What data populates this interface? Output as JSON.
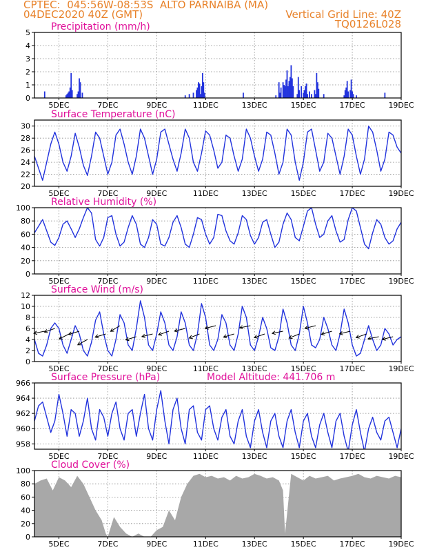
{
  "header": {
    "line1": "CPTEC:  045:56W-08:53S  ALTO PARNAIBA (MA)",
    "line2": "04DEC2020 40Z (GMT)",
    "right1": "Vertical Grid Line: 40Z",
    "right2": "TQ0126L028"
  },
  "colors": {
    "header": "#e8822a",
    "title": "#e0109a",
    "series": "#2233dd",
    "cloud": "#a8a8a8",
    "grid": "#888888"
  },
  "x_axis": {
    "range_hours": [
      0,
      360
    ],
    "ticks": [
      {
        "hour": 24,
        "label": "5DEC"
      },
      {
        "hour": 72,
        "label": "7DEC"
      },
      {
        "hour": 120,
        "label": "9DEC"
      },
      {
        "hour": 168,
        "label": "11DEC"
      },
      {
        "hour": 216,
        "label": "13DEC"
      },
      {
        "hour": 264,
        "label": "15DEC"
      },
      {
        "hour": 312,
        "label": "17DEC"
      },
      {
        "hour": 360,
        "label": "19DEC"
      }
    ]
  },
  "chart_data": [
    {
      "type": "bar",
      "title": "Precipitation (mm/h)",
      "ylim": [
        0,
        5
      ],
      "yticks": [
        0,
        1,
        2,
        3,
        4,
        5
      ],
      "grid": true,
      "x_hours": [
        10,
        31,
        32,
        33,
        34,
        35,
        36,
        37,
        42,
        43,
        44,
        45,
        47,
        148,
        152,
        156,
        159,
        160,
        161,
        162,
        163,
        164,
        165,
        166,
        167,
        205,
        237,
        240,
        241,
        242,
        244,
        245,
        246,
        247,
        248,
        249,
        250,
        251,
        252,
        253,
        254,
        258,
        259,
        260,
        262,
        264,
        265,
        266,
        267,
        268,
        270,
        272,
        275,
        276,
        277,
        278,
        279,
        284,
        304,
        305,
        306,
        307,
        308,
        310,
        311,
        312,
        313,
        316,
        344
      ],
      "values": [
        0.5,
        0.2,
        0.3,
        0.4,
        0.5,
        0.8,
        1.9,
        0.6,
        0.3,
        0.5,
        1.5,
        1.2,
        0.4,
        0.2,
        0.3,
        0.4,
        0.6,
        0.8,
        1.2,
        1.1,
        0.3,
        0.9,
        1.9,
        1.2,
        0.4,
        0.4,
        0.2,
        1.2,
        0.4,
        0.8,
        1.2,
        1.0,
        0.9,
        1.4,
        2.1,
        0.9,
        1.3,
        1.6,
        2.5,
        1.5,
        0.9,
        0.3,
        1.6,
        0.6,
        0.9,
        0.4,
        0.6,
        0.9,
        1.1,
        0.3,
        0.5,
        0.3,
        0.6,
        0.3,
        1.9,
        1.2,
        0.7,
        0.3,
        0.2,
        0.6,
        0.8,
        1.3,
        0.5,
        0.6,
        1.4,
        0.5,
        0.3,
        0.2,
        0.4
      ]
    },
    {
      "type": "line",
      "title": "Surface Temperature (nC)",
      "ylim": [
        20,
        31
      ],
      "yticks": [
        20,
        22,
        24,
        26,
        28,
        30
      ],
      "grid": true,
      "x": [
        0,
        8,
        16,
        20,
        24,
        28,
        32,
        36,
        40,
        44,
        48,
        52,
        56,
        60,
        64,
        68,
        72,
        76,
        80,
        84,
        88,
        92,
        96,
        100,
        104,
        108,
        112,
        116,
        120,
        124,
        128,
        132,
        136,
        140,
        144,
        148,
        152,
        156,
        160,
        164,
        168,
        172,
        176,
        180,
        184,
        188,
        192,
        196,
        200,
        204,
        208,
        212,
        216,
        220,
        224,
        228,
        232,
        236,
        240,
        244,
        248,
        252,
        256,
        260,
        264,
        268,
        272,
        276,
        280,
        284,
        288,
        292,
        296,
        300,
        304,
        308,
        312,
        316,
        320,
        324,
        328,
        332,
        336,
        340,
        344,
        348,
        352,
        356,
        360
      ],
      "y": [
        25.0,
        21.0,
        27.0,
        29.0,
        27.0,
        24.0,
        22.5,
        25.0,
        28.8,
        26.5,
        23.5,
        21.8,
        25.0,
        29.0,
        28.0,
        25.0,
        22.0,
        24.0,
        28.5,
        29.5,
        27.0,
        24.0,
        22.0,
        25.0,
        29.5,
        28.0,
        25.0,
        22.0,
        24.5,
        29.0,
        29.5,
        27.0,
        24.5,
        22.5,
        25.5,
        29.5,
        28.0,
        24.0,
        22.5,
        25.5,
        29.2,
        28.5,
        26.0,
        23.0,
        24.0,
        28.5,
        28.0,
        25.0,
        22.5,
        24.5,
        29.5,
        28.0,
        25.0,
        22.5,
        24.5,
        29.0,
        28.5,
        25.5,
        22.0,
        24.0,
        29.5,
        28.5,
        24.0,
        21.0,
        24.0,
        29.0,
        29.5,
        26.0,
        22.5,
        24.0,
        28.8,
        28.0,
        25.0,
        22.0,
        25.0,
        29.5,
        28.5,
        25.0,
        22.0,
        24.5,
        30.0,
        29.0,
        26.0,
        22.5,
        24.5,
        29.0,
        28.5,
        26.5,
        25.5
      ]
    },
    {
      "type": "line",
      "title": "Relative Humidity (%)",
      "ylim": [
        0,
        100
      ],
      "yticks": [
        0,
        20,
        40,
        60,
        80,
        100
      ],
      "grid": true,
      "x": [
        0,
        8,
        16,
        20,
        24,
        28,
        32,
        36,
        40,
        44,
        48,
        52,
        56,
        60,
        64,
        68,
        72,
        76,
        80,
        84,
        88,
        92,
        96,
        100,
        104,
        108,
        112,
        116,
        120,
        124,
        128,
        132,
        136,
        140,
        144,
        148,
        152,
        156,
        160,
        164,
        168,
        172,
        176,
        180,
        184,
        188,
        192,
        196,
        200,
        204,
        208,
        212,
        216,
        220,
        224,
        228,
        232,
        236,
        240,
        244,
        248,
        252,
        256,
        260,
        264,
        268,
        272,
        276,
        280,
        284,
        288,
        292,
        296,
        300,
        304,
        308,
        312,
        316,
        320,
        324,
        328,
        332,
        336,
        340,
        344,
        348,
        352,
        356,
        360
      ],
      "y": [
        62,
        82,
        48,
        43,
        55,
        75,
        80,
        68,
        55,
        68,
        85,
        100,
        92,
        52,
        42,
        55,
        85,
        88,
        60,
        42,
        48,
        70,
        88,
        75,
        45,
        40,
        55,
        82,
        75,
        45,
        42,
        55,
        78,
        88,
        70,
        45,
        40,
        60,
        85,
        82,
        60,
        45,
        55,
        90,
        88,
        65,
        50,
        45,
        62,
        88,
        82,
        58,
        45,
        55,
        78,
        82,
        60,
        40,
        48,
        75,
        92,
        82,
        55,
        50,
        72,
        95,
        100,
        75,
        55,
        60,
        80,
        88,
        65,
        48,
        52,
        82,
        100,
        95,
        70,
        45,
        38,
        62,
        82,
        75,
        55,
        45,
        50,
        68,
        78
      ]
    },
    {
      "type": "line",
      "title": "Surface Wind (m/s)",
      "ylim": [
        0,
        12
      ],
      "yticks": [
        0,
        2,
        4,
        6,
        8,
        10,
        12
      ],
      "grid": true,
      "x": [
        0,
        4,
        8,
        12,
        16,
        20,
        24,
        28,
        32,
        36,
        40,
        44,
        48,
        52,
        56,
        60,
        64,
        68,
        72,
        76,
        80,
        84,
        88,
        92,
        96,
        100,
        104,
        108,
        112,
        116,
        120,
        124,
        128,
        132,
        136,
        140,
        144,
        148,
        152,
        156,
        160,
        164,
        168,
        172,
        176,
        180,
        184,
        188,
        192,
        196,
        200,
        204,
        208,
        212,
        216,
        220,
        224,
        228,
        232,
        236,
        240,
        244,
        248,
        252,
        256,
        260,
        264,
        268,
        272,
        276,
        280,
        284,
        288,
        292,
        296,
        300,
        304,
        308,
        312,
        316,
        320,
        324,
        328,
        332,
        336,
        340,
        344,
        348,
        352,
        356,
        360
      ],
      "y": [
        4.0,
        1.5,
        1.0,
        3.0,
        6.0,
        7.0,
        6.0,
        3.0,
        1.5,
        4.0,
        6.5,
        5.0,
        2.0,
        1.0,
        3.5,
        7.5,
        9.0,
        5.0,
        2.0,
        1.0,
        4.0,
        8.5,
        7.0,
        3.0,
        2.0,
        6.0,
        11.0,
        8.0,
        3.0,
        2.0,
        5.0,
        9.0,
        7.0,
        3.0,
        2.0,
        4.5,
        9.0,
        7.0,
        3.0,
        2.0,
        5.0,
        10.5,
        8.0,
        3.0,
        2.0,
        4.0,
        8.5,
        7.0,
        3.0,
        2.0,
        5.0,
        10.0,
        8.0,
        3.0,
        2.0,
        4.5,
        8.0,
        6.0,
        2.5,
        2.0,
        4.5,
        9.5,
        7.0,
        3.0,
        2.0,
        5.0,
        10.0,
        7.0,
        3.0,
        2.5,
        4.0,
        8.0,
        6.0,
        3.0,
        2.0,
        5.0,
        9.5,
        7.0,
        3.0,
        1.0,
        1.5,
        4.0,
        6.5,
        4.0,
        2.0,
        3.0,
        6.0,
        5.0,
        3.0,
        4.0,
        4.5
      ],
      "arrows": {
        "x": [
          10,
          20,
          34,
          44,
          52,
          70,
          84,
          100,
          116,
          132,
          148,
          162,
          178,
          196,
          212,
          226,
          244,
          260,
          276,
          292,
          310,
          326,
          338,
          352
        ],
        "speed": [
          5.5,
          6.0,
          5.0,
          5.5,
          4.0,
          5.0,
          6.5,
          4.5,
          5.0,
          5.5,
          6.0,
          5.0,
          6.5,
          5.0,
          6.5,
          5.0,
          5.5,
          5.0,
          6.5,
          5.5,
          5.5,
          5.0,
          4.5,
          4.5
        ],
        "dx": [
          -1,
          -1,
          -1,
          -1,
          -1,
          -1,
          -1,
          -1,
          -1,
          -1,
          -1,
          -1,
          -1,
          -1,
          -1,
          -1,
          -1,
          -1,
          -1,
          -1,
          -1,
          -1,
          -1,
          -1
        ],
        "dy": [
          0.2,
          0.35,
          0.5,
          0.3,
          0.55,
          0.3,
          0.6,
          0.3,
          0.25,
          0.35,
          0.25,
          0.4,
          0.25,
          0.3,
          0.2,
          0.35,
          0.2,
          0.4,
          0.25,
          0.3,
          0.25,
          0.35,
          0.2,
          0.25
        ]
      }
    },
    {
      "type": "line",
      "title": "Surface Pressure (hPa)",
      "annotation": "Model Altitude: 441.706  m",
      "ylim": [
        957.3,
        966
      ],
      "yticks": [
        958,
        960,
        962,
        964,
        966
      ],
      "grid": true,
      "x": [
        0,
        4,
        8,
        12,
        16,
        20,
        24,
        28,
        32,
        36,
        40,
        44,
        48,
        52,
        56,
        60,
        64,
        68,
        72,
        76,
        80,
        84,
        88,
        92,
        96,
        100,
        104,
        108,
        112,
        116,
        120,
        124,
        128,
        132,
        136,
        140,
        144,
        148,
        152,
        156,
        160,
        164,
        168,
        172,
        176,
        180,
        184,
        188,
        192,
        196,
        200,
        204,
        208,
        212,
        216,
        220,
        224,
        228,
        232,
        236,
        240,
        244,
        248,
        252,
        256,
        260,
        264,
        268,
        272,
        276,
        280,
        284,
        288,
        292,
        296,
        300,
        304,
        308,
        312,
        316,
        320,
        324,
        328,
        332,
        336,
        340,
        344,
        348,
        352,
        356,
        360
      ],
      "y": [
        961.0,
        963.0,
        963.5,
        961.5,
        959.5,
        961.0,
        964.5,
        962.0,
        959.0,
        962.5,
        962.0,
        959.0,
        961.0,
        964.0,
        960.0,
        958.5,
        962.5,
        961.5,
        959.0,
        962.0,
        963.5,
        960.0,
        958.5,
        962.0,
        962.5,
        959.0,
        962.0,
        964.5,
        960.0,
        958.5,
        962.5,
        965.0,
        961.0,
        958.0,
        962.5,
        964.0,
        960.0,
        958.0,
        962.5,
        963.0,
        959.5,
        958.5,
        962.5,
        963.0,
        960.0,
        958.5,
        961.5,
        962.5,
        959.0,
        958.0,
        961.0,
        962.5,
        959.0,
        957.5,
        961.0,
        962.5,
        959.5,
        957.5,
        961.0,
        962.0,
        959.0,
        957.5,
        961.0,
        962.5,
        959.5,
        957.5,
        961.0,
        962.0,
        959.0,
        957.5,
        960.5,
        962.0,
        959.5,
        957.5,
        961.0,
        962.0,
        959.0,
        957.0,
        960.5,
        962.5,
        959.5,
        957.0,
        960.0,
        961.5,
        959.5,
        958.5,
        961.0,
        961.5,
        959.5,
        957.5,
        960.0
      ]
    },
    {
      "type": "area",
      "title": "Cloud Cover (%)",
      "ylim": [
        0,
        100
      ],
      "yticks": [
        0,
        20,
        40,
        60,
        80,
        100
      ],
      "grid": true,
      "x": [
        0,
        6,
        12,
        18,
        24,
        30,
        36,
        42,
        48,
        54,
        60,
        66,
        70,
        72,
        78,
        84,
        90,
        96,
        102,
        108,
        114,
        120,
        126,
        132,
        138,
        144,
        150,
        156,
        162,
        168,
        174,
        180,
        186,
        192,
        198,
        204,
        210,
        216,
        222,
        228,
        234,
        240,
        244,
        246,
        252,
        258,
        264,
        270,
        276,
        282,
        288,
        294,
        300,
        306,
        312,
        318,
        324,
        330,
        336,
        342,
        348,
        354,
        360
      ],
      "y": [
        80,
        85,
        88,
        70,
        90,
        85,
        75,
        92,
        80,
        60,
        40,
        25,
        5,
        0,
        30,
        15,
        5,
        0,
        5,
        0,
        0,
        10,
        15,
        40,
        25,
        60,
        80,
        92,
        95,
        90,
        92,
        88,
        90,
        85,
        92,
        88,
        90,
        95,
        92,
        88,
        90,
        85,
        70,
        5,
        95,
        90,
        85,
        92,
        88,
        90,
        92,
        85,
        88,
        90,
        92,
        95,
        90,
        88,
        92,
        90,
        88,
        92,
        90
      ]
    }
  ]
}
